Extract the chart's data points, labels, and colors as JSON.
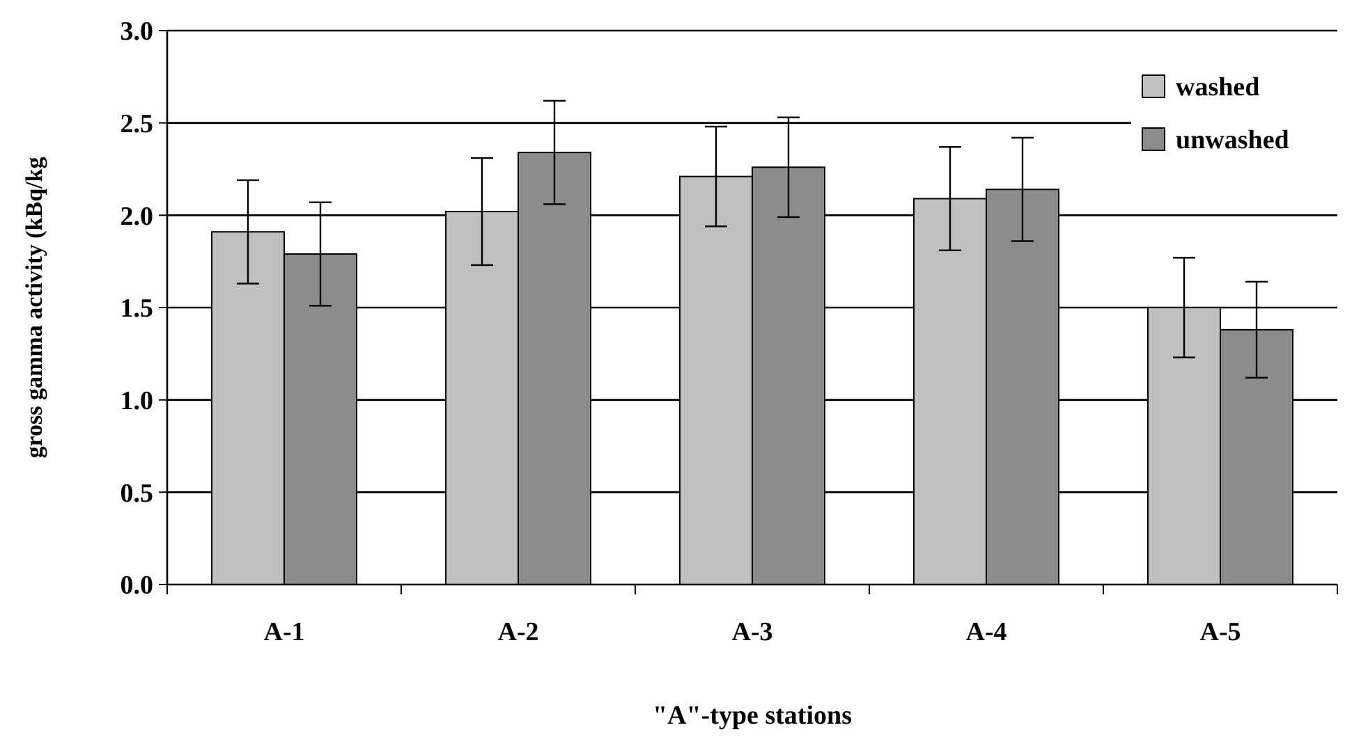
{
  "chart_data": {
    "type": "bar",
    "xlabel": "\"A\"-type stations",
    "ylabel": "gross gamma activity (kBq/kg",
    "categories": [
      "A-1",
      "A-2",
      "A-3",
      "A-4",
      "A-5"
    ],
    "series": [
      {
        "name": "washed",
        "color": "#c0c0c0",
        "values": [
          1.91,
          2.02,
          2.21,
          2.09,
          1.5
        ],
        "errors": [
          0.28,
          0.29,
          0.27,
          0.28,
          0.27
        ]
      },
      {
        "name": "unwashed",
        "color": "#8c8c8c",
        "values": [
          1.79,
          2.34,
          2.26,
          2.14,
          1.38
        ],
        "errors": [
          0.28,
          0.28,
          0.27,
          0.28,
          0.26
        ]
      }
    ],
    "ylim": [
      0,
      3
    ],
    "yticks": [
      {
        "value": 0,
        "label": "0.0"
      },
      {
        "value": 0.5,
        "label": "0.5"
      },
      {
        "value": 1,
        "label": "1.0"
      },
      {
        "value": 1.5,
        "label": "1.5"
      },
      {
        "value": 2,
        "label": "2.0"
      },
      {
        "value": 2.5,
        "label": "2.5"
      },
      {
        "value": 3,
        "label": "3.0"
      }
    ],
    "grid": "y",
    "legend": "top right"
  }
}
